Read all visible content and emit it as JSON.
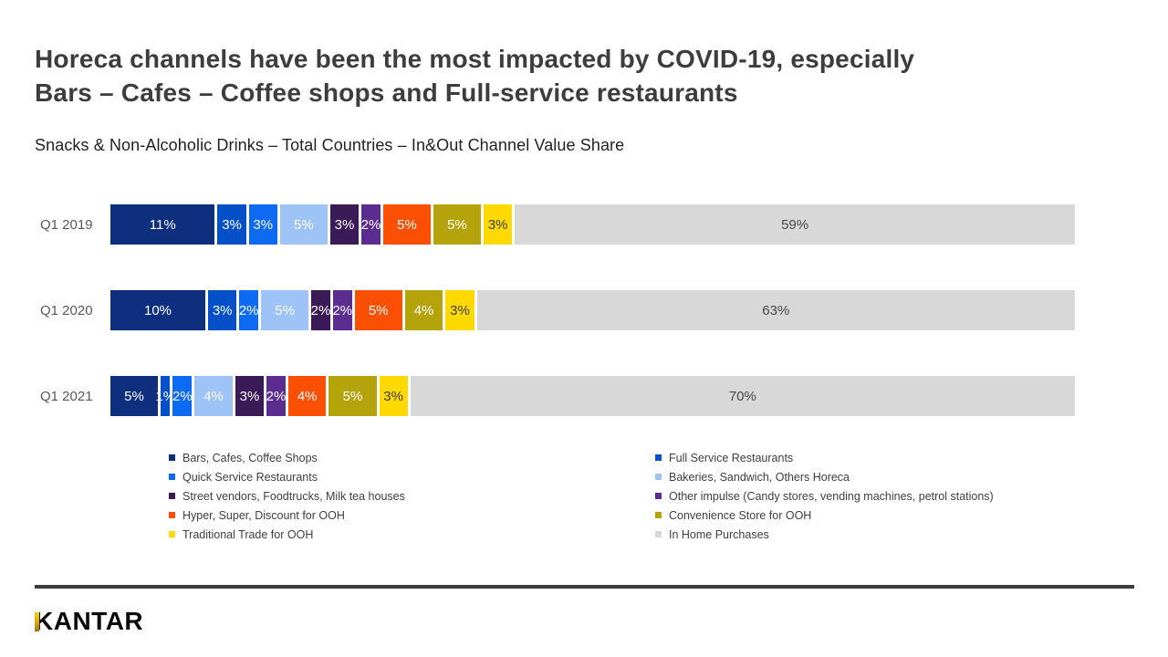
{
  "header": {
    "title_lines": [
      "Horeca channels have been the most impacted by COVID-19, especially",
      "Bars – Cafes – Coffee shops and Full-service restaurants"
    ],
    "subtitle": "Snacks & Non-Alcoholic Drinks – Total Countries – In&Out Channel Value Share"
  },
  "chart_data": {
    "type": "bar",
    "stacked": true,
    "orientation": "horizontal",
    "unit": "%",
    "title": "Snacks & Non-Alcoholic Drinks – Total Countries – In&Out Channel Value Share",
    "categories": [
      "Q1 2019",
      "Q1 2020",
      "Q1 2021"
    ],
    "series": [
      {
        "name": "Bars, Cafes, Coffee Shops",
        "color": "#0d2f7e",
        "label_color": "#ffffff",
        "values": [
          11,
          10,
          5
        ]
      },
      {
        "name": "Full Service Restaurants",
        "color": "#0550c8",
        "label_color": "#ffffff",
        "values": [
          3,
          3,
          1
        ]
      },
      {
        "name": "Quick Service Restaurants",
        "color": "#0c6bf2",
        "label_color": "#ffffff",
        "values": [
          3,
          2,
          2
        ]
      },
      {
        "name": "Bakeries, Sandwich, Others Horeca",
        "color": "#9dc3f7",
        "label_color": "#ffffff",
        "values": [
          5,
          5,
          4
        ]
      },
      {
        "name": "Street vendors, Foodtrucks, Milk tea houses",
        "color": "#3a1a57",
        "label_color": "#ffffff",
        "values": [
          3,
          2,
          3
        ]
      },
      {
        "name": "Other impulse (Candy stores, vending machines, petrol stations)",
        "color": "#5c2d91",
        "label_color": "#ffffff",
        "values": [
          2,
          2,
          2
        ]
      },
      {
        "name": "Hyper, Super, Discount for OOH",
        "color": "#fb4f04",
        "label_color": "#ffffff",
        "values": [
          5,
          5,
          4
        ]
      },
      {
        "name": "Convenience Store for OOH",
        "color": "#b5a30b",
        "label_color": "#ffffff",
        "values": [
          5,
          4,
          5
        ]
      },
      {
        "name": "Traditional Trade for OOH",
        "color": "#ffd900",
        "label_color": "#3d3d3d",
        "values": [
          3,
          3,
          3
        ]
      },
      {
        "name": "In Home Purchases",
        "color": "#d8d8d8",
        "label_color": "#474747",
        "values": [
          59,
          63,
          70
        ]
      }
    ],
    "legend_position": "bottom",
    "legend_columns": [
      [
        0,
        2,
        4,
        6,
        8
      ],
      [
        1,
        3,
        5,
        7,
        9
      ]
    ],
    "xlim": [
      0,
      100
    ],
    "grid": false
  },
  "footer": {
    "logo_text": "KANTAR"
  }
}
